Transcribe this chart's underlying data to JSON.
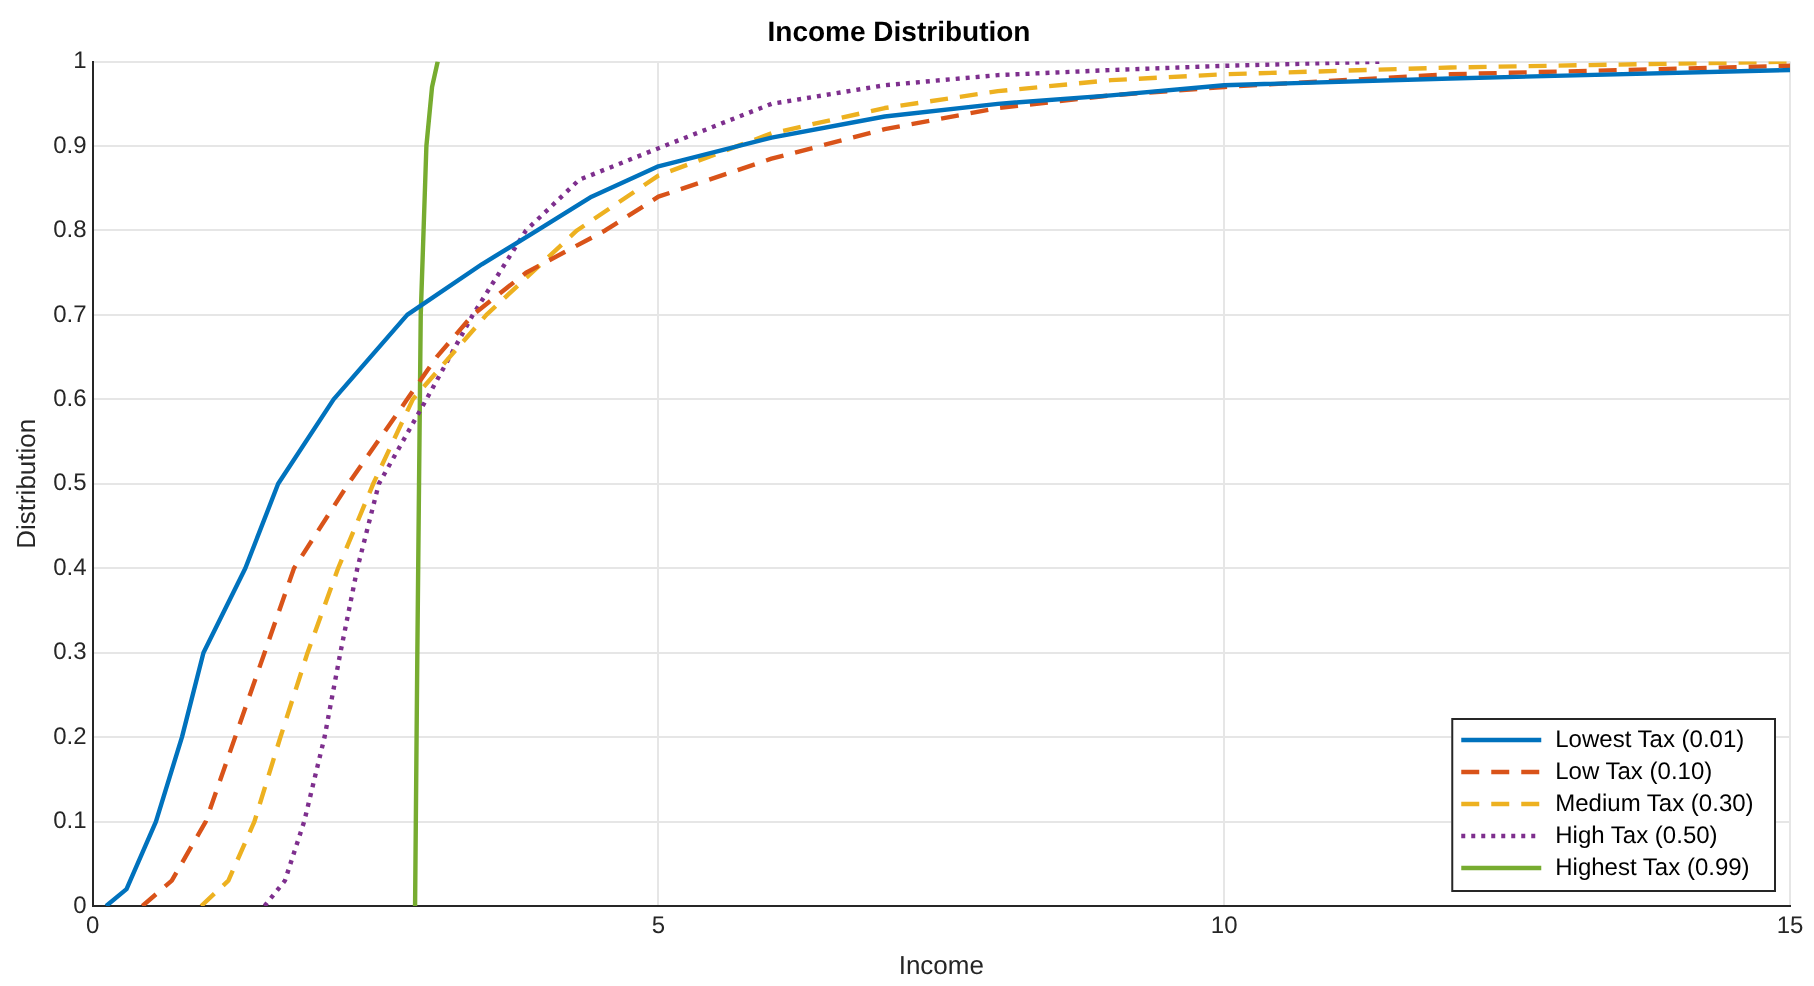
{
  "chart_data": {
    "type": "line",
    "title": "Income Distribution",
    "xlabel": "Income",
    "ylabel": "Distribution",
    "xlim": [
      0,
      15
    ],
    "xticks": [
      0,
      5,
      10,
      15
    ],
    "ylim": [
      0,
      1
    ],
    "yticks": [
      0,
      0.1,
      0.2,
      0.3,
      0.4,
      0.5,
      0.6,
      0.7,
      0.8,
      0.9,
      1
    ],
    "grid": true,
    "legend": "bottom right",
    "marker": "none",
    "series": [
      {
        "name": "Lowest Tax (0.01)",
        "color": "#0072bd",
        "line_style": "solid",
        "x": [
          0.12,
          0.3,
          0.56,
          0.79,
          0.98,
          1.35,
          1.64,
          2.13,
          2.78,
          3.44,
          3.93,
          4.41,
          5,
          6,
          7,
          8,
          9,
          10,
          12,
          15
        ],
        "values": [
          0,
          0.02,
          0.1,
          0.2,
          0.3,
          0.4,
          0.5,
          0.6,
          0.7,
          0.76,
          0.8,
          0.84,
          0.876,
          0.91,
          0.935,
          0.95,
          0.96,
          0.972,
          0.98,
          0.99
        ]
      },
      {
        "name": "Low Tax (0.10)",
        "color": "#d95319",
        "line_style": "dashed",
        "x": [
          0.44,
          0.7,
          1.0,
          1.26,
          1.52,
          1.78,
          2.26,
          2.78,
          3.04,
          3.36,
          3.83,
          4.53,
          5,
          6,
          7,
          8,
          9,
          10,
          12,
          15
        ],
        "values": [
          0,
          0.03,
          0.1,
          0.2,
          0.3,
          0.4,
          0.5,
          0.6,
          0.65,
          0.7,
          0.75,
          0.8,
          0.84,
          0.885,
          0.92,
          0.945,
          0.96,
          0.97,
          0.985,
          0.995
        ]
      },
      {
        "name": "Medium Tax (0.30)",
        "color": "#edb120",
        "line_style": "dashed",
        "x": [
          0.96,
          1.2,
          1.43,
          1.66,
          1.9,
          2.17,
          2.48,
          2.83,
          3.48,
          4.28,
          5,
          6,
          7,
          8,
          9,
          10,
          12,
          15
        ],
        "values": [
          0,
          0.03,
          0.1,
          0.2,
          0.3,
          0.4,
          0.5,
          0.6,
          0.7,
          0.8,
          0.865,
          0.915,
          0.945,
          0.965,
          0.978,
          0.985,
          0.993,
          1
        ]
      },
      {
        "name": "High Tax (0.50)",
        "color": "#7e2f8e",
        "line_style": "dotted",
        "x": [
          1.52,
          1.7,
          1.87,
          2.05,
          2.19,
          2.34,
          2.53,
          2.95,
          3.36,
          3.83,
          4.3,
          5.05,
          6,
          7,
          8,
          9,
          10,
          11.4
        ],
        "values": [
          0,
          0.03,
          0.1,
          0.2,
          0.3,
          0.4,
          0.5,
          0.6,
          0.7,
          0.8,
          0.86,
          0.9,
          0.95,
          0.972,
          0.984,
          0.99,
          0.995,
          1
        ]
      },
      {
        "name": "Highest Tax (0.99)",
        "color": "#77ac30",
        "line_style": "solid",
        "x": [
          2.85,
          2.87,
          2.9,
          2.95,
          3.0,
          3.05
        ],
        "values": [
          0,
          0.3,
          0.7,
          0.9,
          0.97,
          1
        ]
      }
    ]
  }
}
